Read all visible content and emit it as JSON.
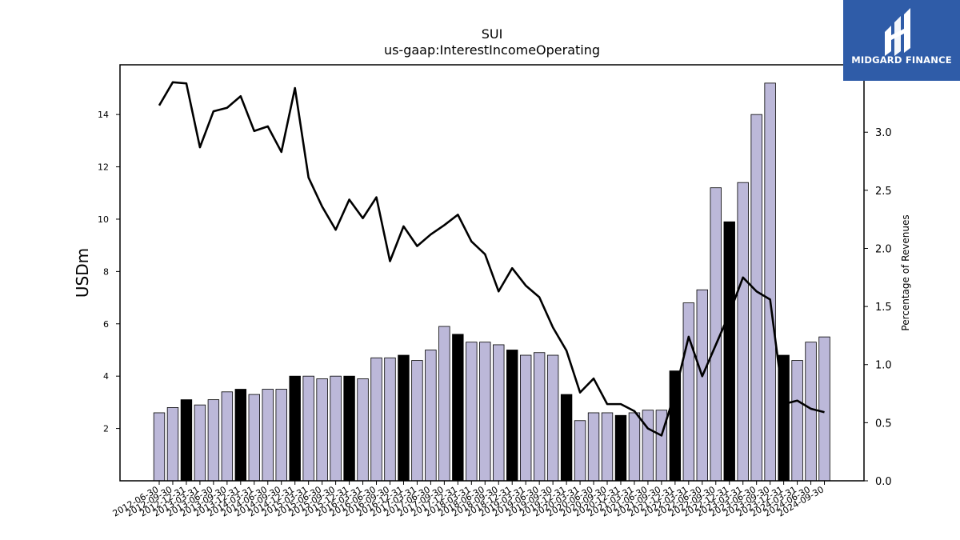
{
  "brand": {
    "name": "MIDGARD FINANCE",
    "logo_icon": "midgard-mark-icon",
    "color": "#2f5ca8"
  },
  "chart_data": {
    "type": "bar",
    "title": "SUI",
    "subtitle": "us-gaap:InterestIncomeOperating",
    "ylabel": "USDm",
    "y2label": "Percentage of Revenues",
    "ylim": [
      0,
      15.9
    ],
    "y2lim": [
      0,
      3.58
    ],
    "yticks": [
      2,
      4,
      6,
      8,
      10,
      12,
      14
    ],
    "y2ticks": [
      "0.0",
      "0.5",
      "1.0",
      "1.5",
      "2.0",
      "2.5",
      "3.0"
    ],
    "grid": false,
    "colors": {
      "bar": "#bcb8d9",
      "bar_highlight": "#000000",
      "line": "#000000"
    },
    "categories": [
      "2012-06-30",
      "2012-09-30",
      "2012-12-31",
      "2013-03-31",
      "2013-06-30",
      "2013-09-30",
      "2013-12-31",
      "2014-03-31",
      "2014-06-30",
      "2014-09-30",
      "2014-12-31",
      "2015-03-31",
      "2015-06-30",
      "2015-09-30",
      "2015-12-31",
      "2016-03-31",
      "2016-06-30",
      "2016-09-30",
      "2016-12-31",
      "2017-03-31",
      "2017-06-30",
      "2017-09-30",
      "2017-12-31",
      "2018-03-31",
      "2018-06-30",
      "2018-09-30",
      "2018-12-31",
      "2019-03-31",
      "2019-06-30",
      "2019-09-30",
      "2019-12-31",
      "2020-03-31",
      "2020-06-30",
      "2020-09-30",
      "2020-12-31",
      "2021-03-31",
      "2021-06-30",
      "2021-09-30",
      "2021-12-31",
      "2022-03-31",
      "2022-06-30",
      "2022-09-30",
      "2022-12-31",
      "2023-03-31",
      "2023-06-30",
      "2023-09-30",
      "2023-12-31",
      "2024-03-31",
      "2024-06-30",
      "2024-09-30"
    ],
    "series": [
      {
        "kind": "bar",
        "axis": "left",
        "values": [
          2.6,
          2.8,
          3.1,
          2.9,
          3.1,
          3.4,
          3.5,
          3.3,
          3.5,
          3.5,
          4.0,
          4.0,
          3.9,
          4.0,
          4.0,
          3.9,
          4.7,
          4.7,
          4.8,
          4.6,
          5.0,
          5.9,
          5.6,
          5.3,
          5.3,
          5.2,
          5.0,
          4.8,
          4.9,
          4.8,
          3.3,
          2.3,
          2.6,
          2.6,
          2.5,
          2.6,
          2.7,
          2.7,
          4.2,
          6.8,
          7.3,
          11.2,
          9.9,
          11.4,
          14.0,
          15.2,
          4.8,
          4.6,
          5.3,
          5.5
        ],
        "highlight": [
          false,
          false,
          true,
          false,
          false,
          false,
          true,
          false,
          false,
          false,
          true,
          false,
          false,
          false,
          true,
          false,
          false,
          false,
          true,
          false,
          false,
          false,
          true,
          false,
          false,
          false,
          true,
          false,
          false,
          false,
          true,
          false,
          false,
          false,
          true,
          false,
          false,
          false,
          true,
          false,
          false,
          false,
          true,
          false,
          false,
          false,
          true,
          false,
          false,
          false
        ]
      },
      {
        "kind": "line",
        "axis": "right",
        "values": [
          3.23,
          3.43,
          3.42,
          2.87,
          3.18,
          3.21,
          3.31,
          3.01,
          3.05,
          2.83,
          3.38,
          2.61,
          2.36,
          2.16,
          2.42,
          2.26,
          2.44,
          1.89,
          2.19,
          2.02,
          2.12,
          2.2,
          2.29,
          2.06,
          1.95,
          1.63,
          1.83,
          1.68,
          1.58,
          1.32,
          1.12,
          0.76,
          0.88,
          0.66,
          0.66,
          0.6,
          0.45,
          0.39,
          0.76,
          1.24,
          0.9,
          1.17,
          1.44,
          1.75,
          1.63,
          1.56,
          0.66,
          0.69,
          0.62,
          0.59
        ]
      }
    ]
  }
}
